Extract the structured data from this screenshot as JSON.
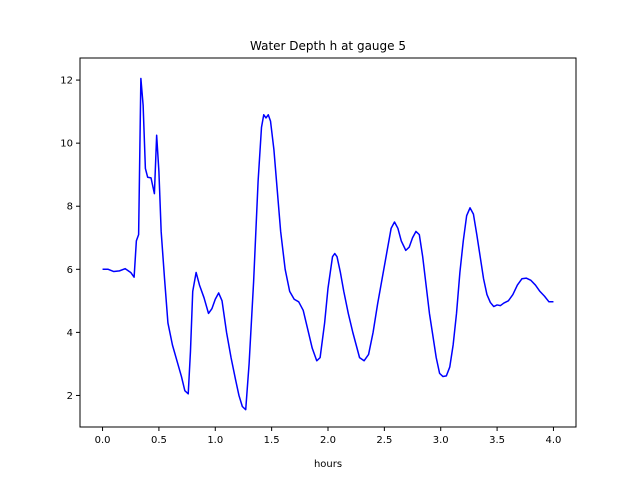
{
  "chart_data": {
    "type": "line",
    "title": "Water Depth h at gauge 5",
    "xlabel": "hours",
    "ylabel": "",
    "xlim": [
      -0.2,
      4.2
    ],
    "ylim": [
      1.0,
      12.7
    ],
    "xticks": [
      0.0,
      0.5,
      1.0,
      1.5,
      2.0,
      2.5,
      3.0,
      3.5,
      4.0
    ],
    "xtick_labels": [
      "0.0",
      "0.5",
      "1.0",
      "1.5",
      "2.0",
      "2.5",
      "3.0",
      "3.5",
      "4.0"
    ],
    "yticks": [
      2,
      4,
      6,
      8,
      10,
      12
    ],
    "ytick_labels": [
      "2",
      "4",
      "6",
      "8",
      "10",
      "12"
    ],
    "grid": false,
    "series": [
      {
        "color": "#0000ff",
        "x": [
          0.0,
          0.05,
          0.1,
          0.15,
          0.2,
          0.25,
          0.28,
          0.3,
          0.32,
          0.34,
          0.36,
          0.38,
          0.4,
          0.43,
          0.46,
          0.48,
          0.5,
          0.52,
          0.55,
          0.58,
          0.62,
          0.66,
          0.7,
          0.73,
          0.76,
          0.78,
          0.8,
          0.83,
          0.86,
          0.9,
          0.94,
          0.97,
          1.0,
          1.03,
          1.06,
          1.1,
          1.14,
          1.18,
          1.21,
          1.24,
          1.27,
          1.3,
          1.34,
          1.38,
          1.41,
          1.43,
          1.45,
          1.47,
          1.49,
          1.52,
          1.55,
          1.58,
          1.62,
          1.66,
          1.7,
          1.74,
          1.78,
          1.82,
          1.86,
          1.9,
          1.93,
          1.97,
          2.0,
          2.02,
          2.04,
          2.06,
          2.08,
          2.11,
          2.14,
          2.18,
          2.22,
          2.25,
          2.28,
          2.32,
          2.36,
          2.4,
          2.44,
          2.48,
          2.52,
          2.56,
          2.59,
          2.62,
          2.65,
          2.69,
          2.72,
          2.75,
          2.78,
          2.81,
          2.84,
          2.87,
          2.9,
          2.93,
          2.96,
          2.99,
          3.02,
          3.05,
          3.08,
          3.11,
          3.14,
          3.17,
          3.2,
          3.23,
          3.26,
          3.29,
          3.32,
          3.35,
          3.38,
          3.41,
          3.44,
          3.47,
          3.5,
          3.53,
          3.56,
          3.6,
          3.64,
          3.68,
          3.72,
          3.76,
          3.8,
          3.84,
          3.88,
          3.92,
          3.96,
          4.0
        ],
        "y": [
          6.0,
          6.0,
          5.93,
          5.95,
          6.02,
          5.9,
          5.75,
          6.9,
          7.1,
          12.05,
          11.2,
          9.2,
          8.92,
          8.9,
          8.4,
          10.25,
          9.1,
          7.2,
          5.7,
          4.3,
          3.6,
          3.1,
          2.6,
          2.15,
          2.05,
          3.4,
          5.3,
          5.9,
          5.5,
          5.1,
          4.6,
          4.75,
          5.05,
          5.25,
          5.0,
          4.0,
          3.2,
          2.5,
          2.0,
          1.65,
          1.55,
          3.0,
          5.6,
          8.8,
          10.5,
          10.9,
          10.8,
          10.9,
          10.7,
          9.8,
          8.5,
          7.2,
          6.0,
          5.3,
          5.05,
          4.97,
          4.7,
          4.1,
          3.5,
          3.1,
          3.2,
          4.3,
          5.4,
          5.9,
          6.4,
          6.5,
          6.4,
          5.9,
          5.3,
          4.6,
          4.0,
          3.6,
          3.2,
          3.1,
          3.3,
          4.0,
          4.9,
          5.7,
          6.5,
          7.3,
          7.5,
          7.3,
          6.9,
          6.6,
          6.7,
          7.0,
          7.2,
          7.1,
          6.4,
          5.5,
          4.6,
          3.9,
          3.2,
          2.7,
          2.6,
          2.62,
          2.9,
          3.6,
          4.6,
          5.9,
          6.9,
          7.7,
          7.95,
          7.75,
          7.1,
          6.4,
          5.7,
          5.2,
          4.95,
          4.82,
          4.87,
          4.85,
          4.93,
          5.0,
          5.2,
          5.5,
          5.7,
          5.72,
          5.65,
          5.5,
          5.3,
          5.15,
          4.97,
          4.97
        ]
      }
    ]
  }
}
